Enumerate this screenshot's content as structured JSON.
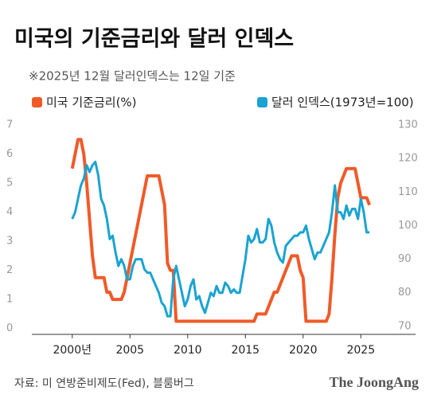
{
  "chart_data": {
    "type": "line",
    "title": "미국의 기준금리와 달러 인덱스",
    "subtitle": "※2025년 12월 달러인덱스는 12일 기준",
    "source": "자료: 미 연방준비제도(Fed), 블룸버그",
    "brand": "The JoongAng",
    "x": [
      2000,
      2000.25,
      2000.5,
      2000.75,
      2001,
      2001.25,
      2001.5,
      2001.75,
      2002,
      2002.25,
      2002.5,
      2002.75,
      2003,
      2003.25,
      2003.5,
      2003.75,
      2004,
      2004.25,
      2004.5,
      2004.75,
      2005,
      2005.25,
      2005.5,
      2005.75,
      2006,
      2006.25,
      2006.5,
      2006.75,
      2007,
      2007.25,
      2007.5,
      2007.75,
      2008,
      2008.25,
      2008.5,
      2008.75,
      2009,
      2009.25,
      2009.5,
      2009.75,
      2010,
      2010.25,
      2010.5,
      2010.75,
      2011,
      2011.25,
      2011.5,
      2011.75,
      2012,
      2012.25,
      2012.5,
      2012.75,
      2013,
      2013.25,
      2013.5,
      2013.75,
      2014,
      2014.25,
      2014.5,
      2014.75,
      2015,
      2015.25,
      2015.5,
      2015.75,
      2016,
      2016.25,
      2016.5,
      2016.75,
      2017,
      2017.25,
      2017.5,
      2017.75,
      2018,
      2018.25,
      2018.5,
      2018.75,
      2019,
      2019.25,
      2019.5,
      2019.75,
      2020,
      2020.25,
      2020.5,
      2020.75,
      2021,
      2021.25,
      2021.5,
      2021.75,
      2022,
      2022.25,
      2022.5,
      2022.75,
      2023,
      2023.25,
      2023.5,
      2023.75,
      2024,
      2024.25,
      2024.5,
      2024.75,
      2025,
      2025.25,
      2025.5,
      2025.75
    ],
    "series": [
      {
        "name": "미국 기준금리(%)",
        "color": "#f05a28",
        "axis": "y",
        "values": [
          5.5,
          6.0,
          6.5,
          6.5,
          6.0,
          5.0,
          3.75,
          2.5,
          1.75,
          1.75,
          1.75,
          1.75,
          1.25,
          1.25,
          1.0,
          1.0,
          1.0,
          1.0,
          1.25,
          1.75,
          2.25,
          2.75,
          3.25,
          3.75,
          4.25,
          4.75,
          5.25,
          5.25,
          5.25,
          5.25,
          5.25,
          4.75,
          4.25,
          2.25,
          2.0,
          2.0,
          0.25,
          0.25,
          0.25,
          0.25,
          0.25,
          0.25,
          0.25,
          0.25,
          0.25,
          0.25,
          0.25,
          0.25,
          0.25,
          0.25,
          0.25,
          0.25,
          0.25,
          0.25,
          0.25,
          0.25,
          0.25,
          0.25,
          0.25,
          0.25,
          0.25,
          0.25,
          0.25,
          0.25,
          0.5,
          0.5,
          0.5,
          0.5,
          0.75,
          1.0,
          1.25,
          1.25,
          1.5,
          1.75,
          2.0,
          2.25,
          2.5,
          2.5,
          2.5,
          2.0,
          1.75,
          0.25,
          0.25,
          0.25,
          0.25,
          0.25,
          0.25,
          0.25,
          0.25,
          0.5,
          1.75,
          3.25,
          4.5,
          5.0,
          5.25,
          5.5,
          5.5,
          5.5,
          5.5,
          5.0,
          4.5,
          4.5,
          4.5,
          4.25
        ]
      },
      {
        "name": "달러 인덱스(1973년=100)",
        "color": "#1aa3d1",
        "axis": "y2",
        "values": [
          102,
          104,
          108,
          112,
          114,
          118,
          116,
          118,
          119,
          115,
          108,
          106,
          102,
          96,
          97,
          92,
          88,
          90,
          88,
          84,
          84,
          88,
          90,
          90,
          90,
          87,
          86,
          86,
          84,
          82,
          80,
          77,
          76,
          73,
          73,
          84,
          88,
          84,
          80,
          76,
          78,
          82,
          84,
          78,
          79,
          76,
          74,
          77,
          80,
          79,
          82,
          80,
          80,
          83,
          82,
          80,
          81,
          80,
          80,
          85,
          90,
          97,
          95,
          96,
          99,
          95,
          95,
          96,
          102,
          100,
          95,
          92,
          90,
          89,
          94,
          95,
          96,
          97,
          97,
          98,
          98,
          100,
          96,
          93,
          90,
          92,
          92,
          94,
          96,
          98,
          104,
          112,
          104,
          104,
          102,
          106,
          103,
          105,
          105,
          102,
          108,
          104,
          98,
          98
        ]
      }
    ],
    "xlim": [
      1996.5,
      2029.6
    ],
    "xticks": [
      {
        "value": 2000,
        "label": "2000년"
      },
      2005,
      2010,
      2015,
      2020,
      2025
    ],
    "ylim": [
      -0.2,
      7
    ],
    "yticks": [
      0,
      1,
      2,
      3,
      4,
      5,
      6,
      7
    ],
    "y2lim": [
      67.6,
      130
    ],
    "y2ticks": [
      70,
      80,
      90,
      100,
      110,
      120,
      130
    ]
  }
}
